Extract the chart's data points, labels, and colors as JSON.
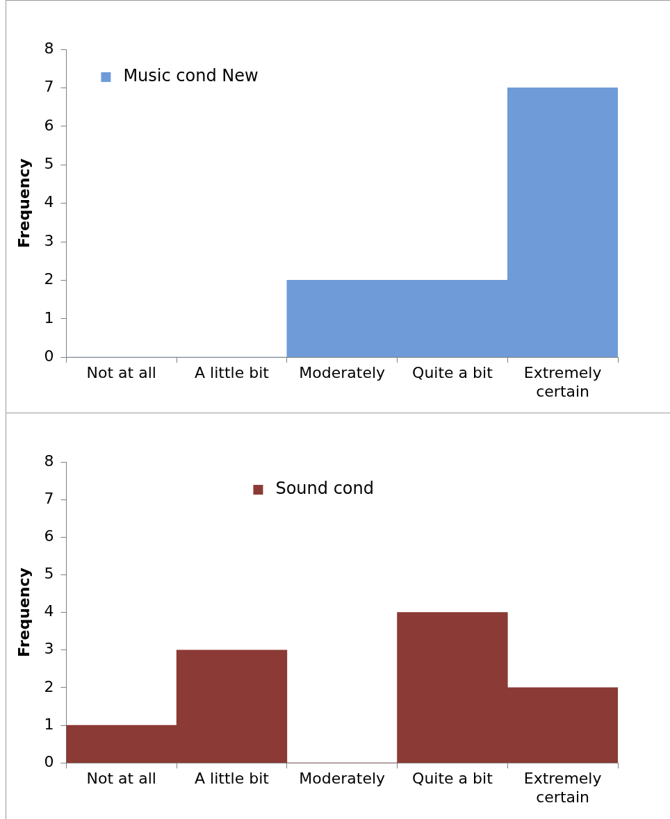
{
  "chart_data": [
    {
      "type": "bar",
      "ylabel": "Frequency",
      "categories": [
        "Not at all",
        "A little bit",
        "Moderately",
        "Quite a bit",
        "Extremely certain"
      ],
      "series": [
        {
          "name": "Music cond New",
          "color": "#6f9bd8",
          "values": [
            0,
            0,
            2,
            2,
            7
          ]
        }
      ],
      "ylim": [
        0,
        8
      ],
      "yticks": [
        0,
        1,
        2,
        3,
        4,
        5,
        6,
        7,
        8
      ],
      "grid": false,
      "legend": "top left"
    },
    {
      "type": "bar",
      "ylabel": "Frequency",
      "categories": [
        "Not at all",
        "A little bit",
        "Moderately",
        "Quite a bit",
        "Extremely certain"
      ],
      "series": [
        {
          "name": "Sound cond",
          "color": "#8b3a36",
          "values": [
            1,
            3,
            0,
            4,
            2
          ]
        }
      ],
      "ylim": [
        0,
        8
      ],
      "yticks": [
        0,
        1,
        2,
        3,
        4,
        5,
        6,
        7,
        8
      ],
      "grid": false,
      "legend": "top"
    }
  ]
}
